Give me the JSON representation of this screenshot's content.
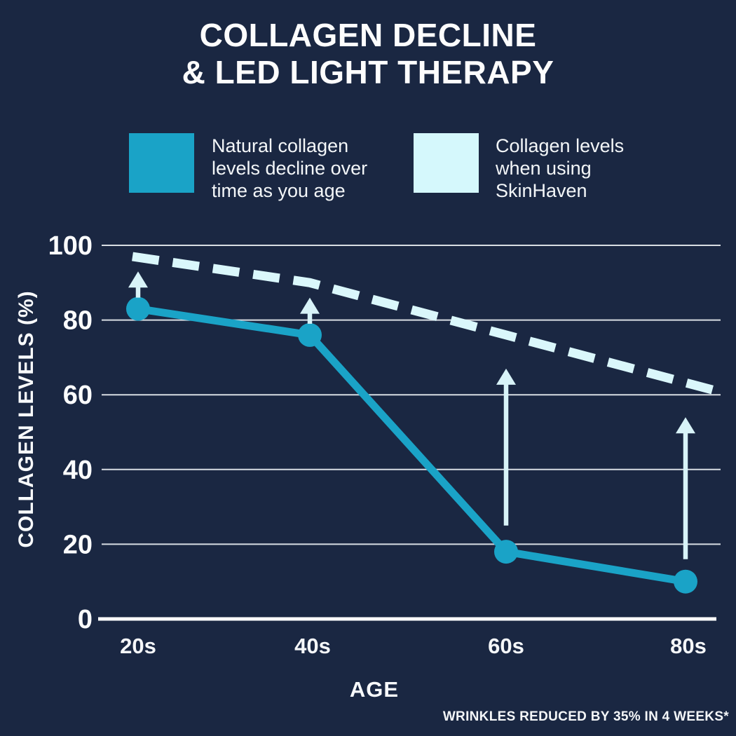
{
  "title": {
    "line1": "COLLAGEN DECLINE",
    "line2": "& LED LIGHT THERAPY"
  },
  "legend": [
    {
      "swatch_color": "#1aa3c7",
      "lines": [
        "Natural collagen",
        "levels decline over",
        "time as you age"
      ]
    },
    {
      "swatch_color": "#d5f8fc",
      "lines": [
        "Collagen levels",
        "when using",
        "SkinHaven"
      ]
    }
  ],
  "footnote": "WRINKLES REDUCED BY 35% IN 4 WEEKS*",
  "colors": {
    "background": "#1a2742",
    "title_text": "#fdfdfd",
    "natural_line": "#1aa3c7",
    "skinhaven_line": "#daf7fb",
    "arrow": "#d8f3f8",
    "gridline": "#e9edf1",
    "axis_line": "#ffffff",
    "tick_text": "#fbfcfd"
  },
  "chart_data": {
    "type": "line",
    "title": "COLLAGEN DECLINE & LED LIGHT THERAPY",
    "categories": [
      "20s",
      "40s",
      "60s",
      "80s"
    ],
    "series": [
      {
        "name": "Natural collagen levels decline over time as you age",
        "style": "solid",
        "color": "#1aa3c7",
        "markers": true,
        "values": [
          83,
          76,
          18,
          10
        ]
      },
      {
        "name": "Collagen levels when using SkinHaven",
        "style": "dashed",
        "color": "#daf7fb",
        "markers": false,
        "values": [
          97,
          90,
          76,
          61
        ]
      }
    ],
    "arrows": [
      {
        "x": "20s",
        "from": 86,
        "to": 93
      },
      {
        "x": "40s",
        "from": 79,
        "to": 86
      },
      {
        "x": "60s",
        "from": 25,
        "to": 67
      },
      {
        "x": "80s",
        "from": 16,
        "to": 54
      }
    ],
    "xlabel": "AGE",
    "ylabel": "COLLAGEN LEVELS (%)",
    "yticks": [
      100,
      80,
      60,
      40,
      20,
      0
    ],
    "ylim": [
      0,
      100
    ],
    "grid": true,
    "legend_position": "top",
    "annotation_meaning": "up arrows show collagen improvement from natural level to SkinHaven level at each age"
  }
}
